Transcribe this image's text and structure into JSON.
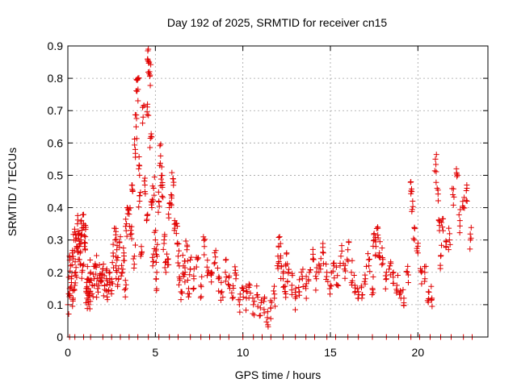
{
  "chart_data": {
    "type": "scatter",
    "title": "Day 192 of 2025, SRMTID for receiver cn15",
    "xlabel": "GPS time / hours",
    "ylabel": "SRMTID / TECUs",
    "xlim": [
      0,
      24
    ],
    "ylim": [
      0,
      0.9
    ],
    "x_ticks": [
      0,
      5,
      10,
      15,
      20
    ],
    "y_ticks": [
      0,
      0.1,
      0.2,
      0.3,
      0.4,
      0.5,
      0.6,
      0.7,
      0.8,
      0.9
    ],
    "grid": true,
    "legend": "none",
    "marker": "+",
    "marker_color": "#e00000",
    "series": [
      {
        "name": "SRMTID",
        "points": [
          [
            0.0,
            0.1
          ],
          [
            0.1,
            0.15
          ],
          [
            0.15,
            0.22
          ],
          [
            0.2,
            0.18
          ],
          [
            0.25,
            0.26
          ],
          [
            0.3,
            0.12
          ],
          [
            0.35,
            0.3
          ],
          [
            0.4,
            0.16
          ],
          [
            0.45,
            0.2
          ],
          [
            0.5,
            0.28
          ],
          [
            0.55,
            0.35
          ],
          [
            0.6,
            0.24
          ],
          [
            0.65,
            0.32
          ],
          [
            0.7,
            0.26
          ],
          [
            0.75,
            0.3
          ],
          [
            0.8,
            0.33
          ],
          [
            0.85,
            0.22
          ],
          [
            0.9,
            0.35
          ],
          [
            0.95,
            0.28
          ],
          [
            1.0,
            0.31
          ],
          [
            1.05,
            0.15
          ],
          [
            1.1,
            0.12
          ],
          [
            1.15,
            0.18
          ],
          [
            1.2,
            0.1
          ],
          [
            1.25,
            0.14
          ],
          [
            1.3,
            0.2
          ],
          [
            1.4,
            0.16
          ],
          [
            1.5,
            0.18
          ],
          [
            1.6,
            0.22
          ],
          [
            1.7,
            0.15
          ],
          [
            1.8,
            0.19
          ],
          [
            1.9,
            0.17
          ],
          [
            2.0,
            0.21
          ],
          [
            2.1,
            0.16
          ],
          [
            2.2,
            0.18
          ],
          [
            2.3,
            0.14
          ],
          [
            2.4,
            0.2
          ],
          [
            2.5,
            0.17
          ],
          [
            2.6,
            0.25
          ],
          [
            2.7,
            0.3
          ],
          [
            2.75,
            0.22
          ],
          [
            2.8,
            0.27
          ],
          [
            2.9,
            0.18
          ],
          [
            3.0,
            0.31
          ],
          [
            3.1,
            0.2
          ],
          [
            3.2,
            0.26
          ],
          [
            3.3,
            0.15
          ],
          [
            3.35,
            0.35
          ],
          [
            3.4,
            0.4
          ],
          [
            3.5,
            0.38
          ],
          [
            3.6,
            0.33
          ],
          [
            3.7,
            0.45
          ],
          [
            3.8,
            0.25
          ],
          [
            3.85,
            0.58
          ],
          [
            3.9,
            0.65
          ],
          [
            3.95,
            0.76
          ],
          [
            4.0,
            0.8
          ],
          [
            4.05,
            0.52
          ],
          [
            4.1,
            0.42
          ],
          [
            4.2,
            0.28
          ],
          [
            4.3,
            0.68
          ],
          [
            4.4,
            0.47
          ],
          [
            4.5,
            0.36
          ],
          [
            4.55,
            0.72
          ],
          [
            4.6,
            0.89
          ],
          [
            4.65,
            0.85
          ],
          [
            4.7,
            0.81
          ],
          [
            4.75,
            0.62
          ],
          [
            4.8,
            0.4
          ],
          [
            4.85,
            0.22
          ],
          [
            4.9,
            0.46
          ],
          [
            5.0,
            0.3
          ],
          [
            5.05,
            0.18
          ],
          [
            5.1,
            0.25
          ],
          [
            5.2,
            0.42
          ],
          [
            5.3,
            0.56
          ],
          [
            5.35,
            0.5
          ],
          [
            5.4,
            0.47
          ],
          [
            5.5,
            0.3
          ],
          [
            5.6,
            0.2
          ],
          [
            5.7,
            0.24
          ],
          [
            5.8,
            0.4
          ],
          [
            5.9,
            0.44
          ],
          [
            6.0,
            0.49
          ],
          [
            6.1,
            0.36
          ],
          [
            6.2,
            0.32
          ],
          [
            6.3,
            0.25
          ],
          [
            6.4,
            0.18
          ],
          [
            6.5,
            0.14
          ],
          [
            6.6,
            0.22
          ],
          [
            6.7,
            0.2
          ],
          [
            6.8,
            0.27
          ],
          [
            6.9,
            0.15
          ],
          [
            7.0,
            0.21
          ],
          [
            7.2,
            0.18
          ],
          [
            7.4,
            0.24
          ],
          [
            7.6,
            0.16
          ],
          [
            7.8,
            0.28
          ],
          [
            8.0,
            0.2
          ],
          [
            8.2,
            0.17
          ],
          [
            8.4,
            0.23
          ],
          [
            8.6,
            0.18
          ],
          [
            8.8,
            0.14
          ],
          [
            9.0,
            0.2
          ],
          [
            9.2,
            0.16
          ],
          [
            9.4,
            0.12
          ],
          [
            9.6,
            0.18
          ],
          [
            9.8,
            0.1
          ],
          [
            10.0,
            0.15
          ],
          [
            10.2,
            0.12
          ],
          [
            10.4,
            0.16
          ],
          [
            10.6,
            0.1
          ],
          [
            10.8,
            0.13
          ],
          [
            11.0,
            0.09
          ],
          [
            11.2,
            0.11
          ],
          [
            11.4,
            0.06
          ],
          [
            11.6,
            0.09
          ],
          [
            11.8,
            0.12
          ],
          [
            12.0,
            0.25
          ],
          [
            12.1,
            0.31
          ],
          [
            12.2,
            0.22
          ],
          [
            12.3,
            0.18
          ],
          [
            12.4,
            0.14
          ],
          [
            12.5,
            0.26
          ],
          [
            12.6,
            0.2
          ],
          [
            12.8,
            0.16
          ],
          [
            13.0,
            0.12
          ],
          [
            13.2,
            0.14
          ],
          [
            13.4,
            0.18
          ],
          [
            13.6,
            0.15
          ],
          [
            13.8,
            0.2
          ],
          [
            14.0,
            0.24
          ],
          [
            14.2,
            0.18
          ],
          [
            14.4,
            0.22
          ],
          [
            14.6,
            0.26
          ],
          [
            14.8,
            0.2
          ],
          [
            15.0,
            0.16
          ],
          [
            15.2,
            0.22
          ],
          [
            15.4,
            0.19
          ],
          [
            15.6,
            0.25
          ],
          [
            15.8,
            0.21
          ],
          [
            16.0,
            0.27
          ],
          [
            16.2,
            0.2
          ],
          [
            16.4,
            0.16
          ],
          [
            16.6,
            0.14
          ],
          [
            16.8,
            0.12
          ],
          [
            17.0,
            0.18
          ],
          [
            17.2,
            0.22
          ],
          [
            17.4,
            0.15
          ],
          [
            17.5,
            0.32
          ],
          [
            17.6,
            0.28
          ],
          [
            17.7,
            0.34
          ],
          [
            17.8,
            0.26
          ],
          [
            18.0,
            0.24
          ],
          [
            18.2,
            0.18
          ],
          [
            18.4,
            0.22
          ],
          [
            18.6,
            0.2
          ],
          [
            18.8,
            0.16
          ],
          [
            19.0,
            0.14
          ],
          [
            19.2,
            0.12
          ],
          [
            19.4,
            0.2
          ],
          [
            19.6,
            0.48
          ],
          [
            19.7,
            0.42
          ],
          [
            19.8,
            0.3
          ],
          [
            20.0,
            0.26
          ],
          [
            20.2,
            0.2
          ],
          [
            20.4,
            0.18
          ],
          [
            20.6,
            0.14
          ],
          [
            20.8,
            0.12
          ],
          [
            21.0,
            0.55
          ],
          [
            21.1,
            0.46
          ],
          [
            21.2,
            0.36
          ],
          [
            21.3,
            0.25
          ],
          [
            21.4,
            0.34
          ],
          [
            21.6,
            0.28
          ],
          [
            21.8,
            0.3
          ],
          [
            22.0,
            0.44
          ],
          [
            22.2,
            0.52
          ],
          [
            22.4,
            0.36
          ],
          [
            22.6,
            0.4
          ],
          [
            22.8,
            0.46
          ],
          [
            23.0,
            0.3
          ]
        ]
      }
    ],
    "zero_points_x": [
      0.1,
      0.4,
      0.9,
      1.3,
      2.0,
      2.5,
      3.0,
      3.5,
      4.0,
      4.6,
      5.2,
      5.8,
      6.3,
      7.0,
      7.6,
      8.1,
      8.7,
      9.2,
      10.0,
      10.6,
      11.1,
      11.6,
      12.3,
      13.0,
      13.6,
      14.1,
      14.8,
      15.3,
      16.0,
      16.6,
      17.4,
      18.2,
      18.9,
      19.6,
      20.1,
      20.7,
      21.3,
      21.9,
      22.6,
      23.1
    ]
  }
}
